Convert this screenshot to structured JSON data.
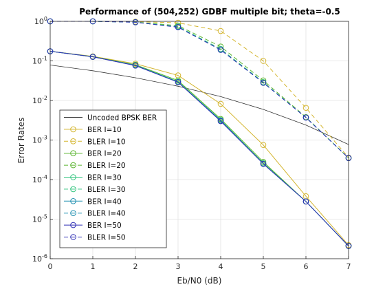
{
  "chart_data": {
    "type": "line",
    "title": "Performance of (504,252) GDBF multiple bit; theta=-0.5",
    "xlabel": "Eb/N0 (dB)",
    "ylabel": "Error Rates",
    "x": [
      0,
      1,
      2,
      3,
      4,
      5,
      6,
      7
    ],
    "xlim": [
      0,
      7
    ],
    "ylim": [
      1e-06,
      1
    ],
    "yscale": "log",
    "grid": true,
    "legend_position": "bottom-left",
    "x_tick_labels": [
      "0",
      "1",
      "2",
      "3",
      "4",
      "5",
      "6",
      "7"
    ],
    "y_tick_labels": [
      {
        "base": "10",
        "exp": "0"
      },
      {
        "base": "10",
        "exp": "-1"
      },
      {
        "base": "10",
        "exp": "-2"
      },
      {
        "base": "10",
        "exp": "-3"
      },
      {
        "base": "10",
        "exp": "-4"
      },
      {
        "base": "10",
        "exp": "-5"
      },
      {
        "base": "10",
        "exp": "-6"
      }
    ],
    "series": [
      {
        "name": "Uncoded BPSK BER",
        "color": "#333333",
        "dash": false,
        "marker": false,
        "values": [
          0.0786,
          0.0563,
          0.0375,
          0.0229,
          0.0125,
          0.00595,
          0.00239,
          0.00077
        ]
      },
      {
        "name": "BER I=10",
        "color": "#d4b52e",
        "dash": false,
        "marker": true,
        "values": [
          0.175,
          0.13,
          0.085,
          0.043,
          0.0082,
          0.00075,
          3.8e-05,
          2.2e-06
        ]
      },
      {
        "name": "BLER I=10",
        "color": "#d4b52e",
        "dash": true,
        "marker": true,
        "values": [
          1.0,
          1.0,
          0.98,
          0.92,
          0.57,
          0.1,
          0.0065,
          0.00036
        ]
      },
      {
        "name": "BER I=20",
        "color": "#5ab52e",
        "dash": false,
        "marker": true,
        "values": [
          0.175,
          0.128,
          0.08,
          0.032,
          0.0034,
          0.00028,
          2.8e-05,
          2.1e-06
        ]
      },
      {
        "name": "BLER I=20",
        "color": "#5ab52e",
        "dash": true,
        "marker": true,
        "values": [
          1.0,
          1.0,
          0.96,
          0.78,
          0.23,
          0.032,
          0.0038,
          0.00035
        ]
      },
      {
        "name": "BER I=30",
        "color": "#2ec47c",
        "dash": false,
        "marker": true,
        "values": [
          0.175,
          0.127,
          0.078,
          0.03,
          0.0032,
          0.00026,
          2.8e-05,
          2.1e-06
        ]
      },
      {
        "name": "BLER I=30",
        "color": "#2ec47c",
        "dash": true,
        "marker": true,
        "values": [
          1.0,
          1.0,
          0.95,
          0.74,
          0.2,
          0.029,
          0.0037,
          0.00035
        ]
      },
      {
        "name": "BER I=40",
        "color": "#1f8fb0",
        "dash": false,
        "marker": true,
        "values": [
          0.175,
          0.127,
          0.077,
          0.029,
          0.0031,
          0.00025,
          2.8e-05,
          2.1e-06
        ]
      },
      {
        "name": "BLER I=40",
        "color": "#1f8fb0",
        "dash": true,
        "marker": true,
        "values": [
          1.0,
          1.0,
          0.95,
          0.72,
          0.19,
          0.028,
          0.0037,
          0.00035
        ]
      },
      {
        "name": "BER I=50",
        "color": "#2f2fb5",
        "dash": false,
        "marker": true,
        "values": [
          0.175,
          0.127,
          0.076,
          0.029,
          0.003,
          0.00025,
          2.8e-05,
          2.1e-06
        ]
      },
      {
        "name": "BLER I=50",
        "color": "#2f2fb5",
        "dash": true,
        "marker": true,
        "values": [
          1.0,
          1.0,
          0.95,
          0.71,
          0.19,
          0.028,
          0.0037,
          0.00035
        ]
      }
    ]
  }
}
